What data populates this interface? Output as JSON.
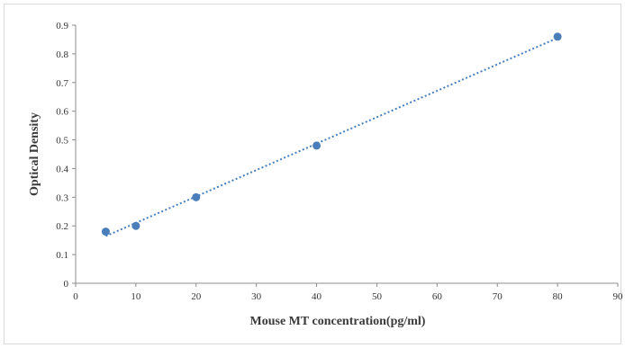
{
  "chart_data": {
    "type": "scatter",
    "title": "",
    "xlabel": "Mouse MT concentration(pg/ml)",
    "ylabel": "Optical Density",
    "xlim": [
      0,
      90
    ],
    "ylim": [
      0,
      0.9
    ],
    "x_ticks": [
      "0",
      "10",
      "20",
      "30",
      "40",
      "50",
      "60",
      "70",
      "80",
      "90"
    ],
    "y_ticks": [
      "0",
      "0.1",
      "0.2",
      "0.3",
      "0.4",
      "0.5",
      "0.6",
      "0.7",
      "0.8",
      "0.9"
    ],
    "grid": false,
    "legend": "none",
    "series": [
      {
        "x": [
          5,
          10,
          20,
          40,
          80
        ],
        "y": [
          0.18,
          0.2,
          0.3,
          0.48,
          0.86
        ],
        "color": "#4a7ebb",
        "trendline": "linear"
      }
    ]
  }
}
